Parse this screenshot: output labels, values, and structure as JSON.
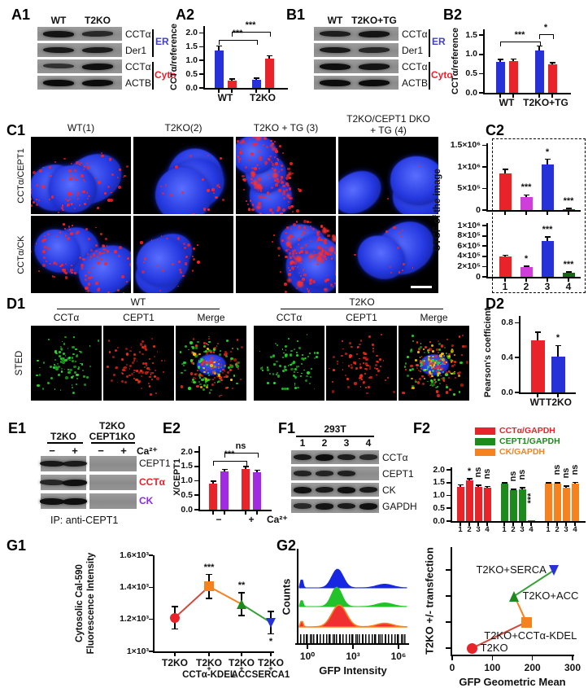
{
  "colors": {
    "blue": "#2632d8",
    "red": "#e8232a",
    "magenta": "#cf3ed8",
    "dark_green": "#156615",
    "green": "#1d8a1d",
    "orange": "#f5821f",
    "purple": "#a12be0",
    "er_label": "#4040cc",
    "cyto_label": "#e8232a",
    "ck_label": "#8a2be2"
  },
  "panels": {
    "a1": {
      "label": "A1",
      "lanes": [
        "WT",
        "T2KO"
      ],
      "rows": [
        {
          "label": "CCTα",
          "lanes": [
            0.85,
            0.5
          ]
        },
        {
          "label": "Der1",
          "lanes": [
            0.8,
            0.75
          ]
        },
        {
          "label": "CCTα",
          "lanes": [
            0.35,
            0.95
          ]
        },
        {
          "label": "ACTB",
          "lanes": [
            1,
            1
          ]
        }
      ],
      "group1": "ER",
      "group2": "Cyto"
    },
    "a2": {
      "label": "A2"
    },
    "b1": {
      "label": "B1",
      "lanes": [
        "WT",
        "T2KO+TG"
      ],
      "rows": [
        {
          "label": "CCTα",
          "lanes": [
            0.7,
            0.85
          ]
        },
        {
          "label": "Der1",
          "lanes": [
            0.8,
            0.55
          ]
        },
        {
          "label": "CCTα",
          "lanes": [
            0.95,
            0.85
          ]
        },
        {
          "label": "ACTB",
          "lanes": [
            1,
            1
          ]
        }
      ],
      "group1": "ER",
      "group2": "Cyto"
    },
    "b2": {
      "label": "B2"
    },
    "c1": {
      "label": "C1",
      "col_titles": [
        "WT(1)",
        "T2KO(2)",
        "T2KO + TG (3)"
      ],
      "col_title4_line1": "T2KO/CEPT1  DKO",
      "col_title4_line2": "+ TG (4)",
      "row_titles": [
        "CCTα/CEPT1",
        "CCTα/CK"
      ],
      "tiles": [
        {
          "seed": 101,
          "red": 95
        },
        {
          "seed": 102,
          "red": 22
        },
        {
          "seed": 103,
          "red": 150,
          "big": 1
        },
        {
          "seed": 104,
          "red": 5
        },
        {
          "seed": 201,
          "red": 110
        },
        {
          "seed": 202,
          "red": 30
        },
        {
          "seed": 203,
          "red": 165,
          "big": 1
        },
        {
          "seed": 204,
          "red": 14,
          "scalebar": 1
        }
      ]
    },
    "c2": {
      "label": "C2",
      "ylabel": "CTCF of the image"
    },
    "d1": {
      "label": "D1",
      "row_title": "STED",
      "group_titles": [
        "WT",
        "T2KO"
      ],
      "col_titles": [
        "CCTα",
        "CEPT1",
        "Merge"
      ],
      "tiles": [
        {
          "seed": 11,
          "ch": [
            "green"
          ]
        },
        {
          "seed": 12,
          "ch": [
            "red"
          ]
        },
        {
          "seed": 13,
          "ch": [
            "green",
            "red"
          ],
          "merge": 1,
          "yellow": 18
        },
        {
          "seed": 21,
          "ch": [
            "green"
          ]
        },
        {
          "seed": 22,
          "ch": [
            "red"
          ]
        },
        {
          "seed": 23,
          "ch": [
            "green",
            "red"
          ],
          "merge": 1,
          "yellow": 45
        }
      ]
    },
    "d2": {
      "label": "D2"
    },
    "e1": {
      "label": "E1",
      "group1": "T2KO",
      "group2a": "T2KO",
      "group2b": "CEPT1KO",
      "signs": [
        "−",
        "+",
        "−",
        "+"
      ],
      "ca": "Ca²⁺",
      "rows": [
        {
          "label": "CEPT1",
          "color": "#111111",
          "lanes": [
            0.8,
            0.75,
            0,
            0
          ]
        },
        {
          "label": "CCTα",
          "color": "#e8232a",
          "lanes": [
            0.55,
            0.9,
            0,
            0
          ]
        },
        {
          "label": "CK",
          "color": "#8a2be2",
          "lanes": [
            0.9,
            0.95,
            0,
            0
          ]
        }
      ],
      "ip": "IP:   anti-CEPT1"
    },
    "e2": {
      "label": "E2"
    },
    "f1": {
      "label": "F1",
      "cell_line": "293T",
      "lanes": [
        "1",
        "2",
        "3",
        "4"
      ],
      "rows": [
        {
          "label": "CCTα",
          "lanes": [
            0.8,
            1,
            0.7,
            0.5
          ]
        },
        {
          "label": "CEPT1",
          "lanes": [
            0.6,
            0.6,
            0.65,
            0
          ]
        },
        {
          "label": "CK",
          "lanes": [
            0.95,
            0.8,
            0.95,
            0.8
          ]
        },
        {
          "label": "GAPDH",
          "lanes": [
            0.5,
            0.85,
            0.75,
            0.9
          ]
        }
      ]
    },
    "f2": {
      "label": "F2",
      "legend": [
        {
          "label": "CCTα/GAPDH",
          "color": "red"
        },
        {
          "label": "CEPT1/GAPDH",
          "color": "green"
        },
        {
          "label": "CK/GAPDH",
          "color": "orange"
        }
      ]
    },
    "g1": {
      "label": "G1"
    },
    "g2": {
      "label": "G2"
    }
  },
  "chart_data": [
    {
      "id": "a2",
      "type": "bar",
      "ylabel": "CCTα/reference",
      "ymax": 2.25,
      "yticks": [
        {
          "v": 0,
          "t": "0.0"
        },
        {
          "v": 0.5,
          "t": "0.5"
        },
        {
          "v": 1,
          "t": "1.0"
        },
        {
          "v": 1.5,
          "t": "1.5"
        },
        {
          "v": 2,
          "t": "2.0"
        }
      ],
      "xlabels": [
        "WT",
        "T2KO"
      ],
      "bars": [
        {
          "v": 1.35,
          "e": 0.18,
          "c": "blue"
        },
        {
          "v": 0.28,
          "e": 0.05,
          "c": "red"
        },
        {
          "v": 0.3,
          "e": 0.05,
          "c": "blue"
        },
        {
          "v": 1.07,
          "e": 0.1,
          "c": "red"
        }
      ],
      "brackets": [
        {
          "a": 0,
          "b": 2,
          "v": 1.75,
          "t": "***"
        },
        {
          "a": 1,
          "b": 3,
          "v": 2.05,
          "t": "***"
        }
      ]
    },
    {
      "id": "b2",
      "type": "bar",
      "ylabel": "CCTα/reference",
      "ymax": 1.65,
      "yticks": [
        {
          "v": 0,
          "t": "0.0"
        },
        {
          "v": 0.5,
          "t": "0.5"
        },
        {
          "v": 1,
          "t": "1.0"
        },
        {
          "v": 1.5,
          "t": "1.5"
        }
      ],
      "xlabels": [
        "WT",
        "T2KO+TG"
      ],
      "bars": [
        {
          "v": 0.8,
          "e": 0.07,
          "c": "blue"
        },
        {
          "v": 0.82,
          "e": 0.06,
          "c": "red"
        },
        {
          "v": 1.1,
          "e": 0.12,
          "c": "blue"
        },
        {
          "v": 0.73,
          "e": 0.05,
          "c": "red"
        }
      ],
      "brackets": [
        {
          "a": 0,
          "b": 2,
          "v": 1.33,
          "t": "***"
        },
        {
          "a": 2,
          "b": 3,
          "v": 1.52,
          "t": "*"
        }
      ]
    },
    {
      "id": "c2t",
      "type": "bar",
      "ymax": 1550000,
      "yticks": [
        {
          "v": 0,
          "t": "0"
        },
        {
          "v": 500000,
          "t": "5×10⁵"
        },
        {
          "v": 1000000,
          "t": "1×10⁶"
        },
        {
          "v": 1500000,
          "t": "1.5×10⁶"
        }
      ],
      "bars": [
        {
          "v": 850000,
          "e": 100000,
          "c": "red"
        },
        {
          "v": 300000,
          "e": 50000,
          "c": "magenta",
          "s": "***"
        },
        {
          "v": 1050000,
          "e": 130000,
          "c": "blue",
          "s": "*"
        },
        {
          "v": 25000,
          "e": 12000,
          "c": "dark_green",
          "s": "***"
        }
      ]
    },
    {
      "id": "c2b",
      "type": "bar",
      "ymax": 1050000,
      "yticks": [
        {
          "v": 0,
          "t": "0"
        },
        {
          "v": 200000,
          "t": "2×10⁵"
        },
        {
          "v": 400000,
          "t": "4×10⁵"
        },
        {
          "v": 600000,
          "t": "6×10⁵"
        },
        {
          "v": 800000,
          "t": "8×10⁵"
        },
        {
          "v": 1000000,
          "t": "1×10⁶"
        }
      ],
      "xlabels": [
        "1",
        "2",
        "3",
        "4"
      ],
      "bars": [
        {
          "v": 390000,
          "e": 30000,
          "c": "red"
        },
        {
          "v": 190000,
          "e": 20000,
          "c": "magenta",
          "s": "*"
        },
        {
          "v": 700000,
          "e": 80000,
          "c": "blue",
          "s": "***"
        },
        {
          "v": 80000,
          "e": 15000,
          "c": "dark_green",
          "s": "***"
        }
      ]
    },
    {
      "id": "d2",
      "type": "bar",
      "ylabel": "Pearson's coefficient",
      "ymax": 0.88,
      "yticks": [
        {
          "v": 0,
          "t": "0.0"
        },
        {
          "v": 0.4,
          "t": "0.4"
        },
        {
          "v": 0.8,
          "t": "0.8"
        }
      ],
      "xlabels": [
        "WT",
        "T2KO"
      ],
      "bars": [
        {
          "v": 0.6,
          "e": 0.09,
          "c": "red"
        },
        {
          "v": 0.41,
          "e": 0.13,
          "c": "blue",
          "s": "*"
        }
      ]
    },
    {
      "id": "e2",
      "type": "bar",
      "ylabel": "X/CEPT1",
      "ymax": 2.2,
      "yticks": [
        {
          "v": 0,
          "t": "0.0"
        },
        {
          "v": 0.5,
          "t": "0.5"
        },
        {
          "v": 1,
          "t": "1.0"
        },
        {
          "v": 1.5,
          "t": "1.5"
        },
        {
          "v": 2,
          "t": "2.0"
        }
      ],
      "xlabels": [
        "−",
        "+"
      ],
      "xsuffix": "Ca²⁺",
      "bars": [
        {
          "v": 0.9,
          "e": 0.08,
          "c": "red"
        },
        {
          "v": 1.32,
          "e": 0.08,
          "c": "purple"
        },
        {
          "v": 1.4,
          "e": 0.1,
          "c": "red"
        },
        {
          "v": 1.3,
          "e": 0.07,
          "c": "purple"
        }
      ],
      "brackets": [
        {
          "a": 0,
          "b": 2,
          "v": 1.68,
          "t": "***"
        },
        {
          "a": 1,
          "b": 3,
          "v": 1.98,
          "t": "ns"
        }
      ]
    },
    {
      "id": "f2",
      "type": "bar",
      "ymax": 2.1,
      "yticks": [
        {
          "v": 0,
          "t": "0.0"
        },
        {
          "v": 0.5,
          "t": "0.5"
        },
        {
          "v": 1,
          "t": "1.0"
        },
        {
          "v": 1.5,
          "t": "1.5"
        },
        {
          "v": 2,
          "t": "2.0"
        }
      ],
      "xlabels": [
        "1",
        "2",
        "3",
        "4",
        "1",
        "2",
        "3",
        "4",
        "1",
        "2",
        "3",
        "4"
      ],
      "bars": [
        {
          "v": 1.35,
          "e": 0.06,
          "c": "red"
        },
        {
          "v": 1.6,
          "e": 0.06,
          "c": "red",
          "s": "*"
        },
        {
          "v": 1.35,
          "e": 0.05,
          "c": "red",
          "s": "ns",
          "rot": 1
        },
        {
          "v": 1.3,
          "e": 0.05,
          "c": "red",
          "s": "ns",
          "rot": 1
        },
        {
          "v": 1.45,
          "e": 0.05,
          "c": "green"
        },
        {
          "v": 1.2,
          "e": 0.05,
          "c": "green",
          "s": "ns",
          "rot": 1
        },
        {
          "v": 1.25,
          "e": 0.05,
          "c": "green",
          "s": "ns",
          "rot": 1
        },
        {
          "v": 0.04,
          "e": 0,
          "c": "green",
          "s": "***",
          "rot": 1,
          "below": 1
        },
        {
          "v": 1.45,
          "e": 0.05,
          "c": "orange"
        },
        {
          "v": 1.45,
          "e": 0.05,
          "c": "orange",
          "s": "ns",
          "rot": 1
        },
        {
          "v": 1.32,
          "e": 0.05,
          "c": "orange",
          "s": "ns",
          "rot": 1
        },
        {
          "v": 1.45,
          "e": 0.06,
          "c": "orange",
          "s": "ns",
          "rot": 1
        }
      ]
    },
    {
      "id": "g1",
      "type": "points",
      "ylabel1": "Cytosolic Cal-590",
      "ylabel2": "Fluorescence Intensity",
      "ymin": 1000,
      "ymax": 1600,
      "yticks": [
        {
          "v": 1000,
          "t": "1×10³"
        },
        {
          "v": 1200,
          "t": "1.2×10³"
        },
        {
          "v": 1400,
          "t": "1.4×10³"
        },
        {
          "v": 1600,
          "t": "1.6×10³"
        }
      ],
      "points": [
        {
          "x1": "T2KO",
          "x2": "",
          "v": 1210,
          "e": 70,
          "c": "red",
          "m": "circle"
        },
        {
          "x1": "T2KO",
          "x2": "CCTα-KDEL",
          "v": 1405,
          "e": 75,
          "c": "orange",
          "m": "square",
          "sig": "***"
        },
        {
          "x1": "T2KO",
          "x2": "ACC",
          "v": 1295,
          "e": 70,
          "c": "green",
          "m": "tri-up",
          "sig": "**"
        },
        {
          "x1": "T2KO",
          "x2": "SERCA1",
          "v": 1180,
          "e": 70,
          "c": "blue",
          "m": "tri-down",
          "sig": "*",
          "sig_below": 1
        }
      ],
      "seg_colors": [
        "#cf4a3a",
        "#f5821f",
        "#3aa03a"
      ],
      "plus": "+"
    },
    {
      "id": "g2",
      "type": "flow",
      "ylabel": "Counts",
      "xlabel": "GFP Intensity",
      "xticks": [
        "10⁰",
        "10³",
        "10⁶"
      ],
      "series": [
        {
          "color": "#1726e3"
        },
        {
          "color": "#22c32a"
        },
        {
          "color": "#f03030",
          "stroke": "#f5821f"
        }
      ]
    },
    {
      "id": "g3",
      "type": "scatter",
      "ylabel": "T2KO +/- transfection",
      "xlabel": "GFP Geometric Mean",
      "xmax": 300,
      "xticks": [
        {
          "v": 0,
          "t": "0"
        },
        {
          "v": 100,
          "t": "100"
        },
        {
          "v": 200,
          "t": "200"
        },
        {
          "v": 300,
          "t": "300"
        }
      ],
      "points": [
        {
          "x": 50,
          "lv": 1,
          "c": "red",
          "m": "circle",
          "t": "T2KO",
          "side": "right"
        },
        {
          "x": 185,
          "lv": 2,
          "c": "orange",
          "m": "square",
          "t": "T2KO+CCTα-KDEL",
          "side": "below"
        },
        {
          "x": 155,
          "lv": 3,
          "c": "green",
          "m": "tri-up",
          "t": "T2KO+ACC",
          "side": "right"
        },
        {
          "x": 255,
          "lv": 4,
          "c": "blue",
          "m": "tri-down",
          "t": "T2KO+SERCA",
          "side": "left"
        }
      ],
      "seg_colors": [
        "#cf4a3a",
        "#f5821f",
        "#3aa03a"
      ]
    }
  ]
}
